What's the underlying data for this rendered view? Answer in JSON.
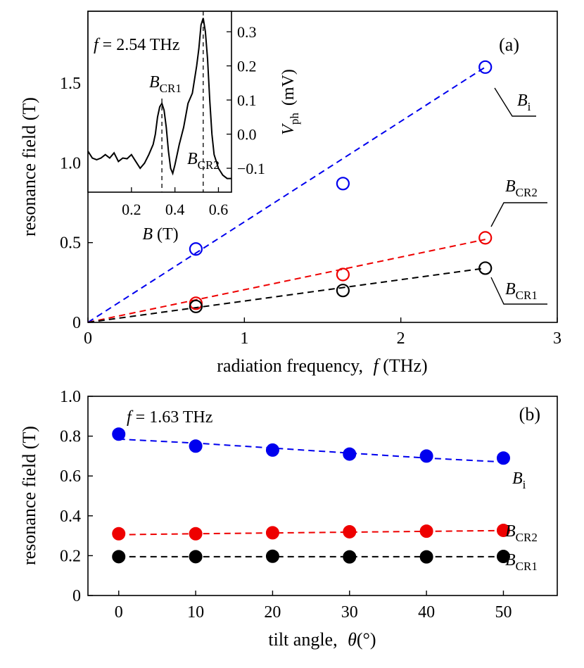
{
  "chart_data": [
    {
      "id": "a",
      "type": "scatter",
      "panel_label": "(a)",
      "xlabel_text": "radiation frequency,",
      "xlabel_var": "f",
      "xlabel_unit": "(THz)",
      "ylabel": "resonance field (T)",
      "xlim": [
        0,
        3
      ],
      "ylim": [
        0,
        1.95
      ],
      "xticks": [
        "0",
        "1",
        "2",
        "3"
      ],
      "yticks": [
        "0",
        "0.5",
        "1.0",
        "1.5"
      ],
      "series": [
        {
          "label_main": "B",
          "label_sub": "i",
          "color": "#0000ee",
          "x": [
            0.69,
            1.63,
            2.54
          ],
          "y": [
            0.46,
            0.87,
            1.6
          ],
          "fit": {
            "x": [
              0,
              2.54
            ],
            "y": [
              0,
              1.6
            ]
          }
        },
        {
          "label_main": "B",
          "label_sub": "CR2",
          "color": "#ee0000",
          "x": [
            0.69,
            1.63,
            2.54
          ],
          "y": [
            0.12,
            0.3,
            0.53
          ],
          "fit": {
            "x": [
              0,
              2.54
            ],
            "y": [
              0,
              0.52
            ]
          }
        },
        {
          "label_main": "B",
          "label_sub": "CR1",
          "color": "#000000",
          "x": [
            0.69,
            1.63,
            2.54
          ],
          "y": [
            0.1,
            0.2,
            0.34
          ],
          "fit": {
            "x": [
              0,
              2.54
            ],
            "y": [
              0,
              0.34
            ]
          }
        }
      ],
      "inset": {
        "type": "line",
        "annotation_var": "f",
        "annotation_text": " = 2.54 THz",
        "xlabel_var": "B",
        "xlabel_unit": " (T)",
        "ylabel_main": "V",
        "ylabel_sub": "ph",
        "ylabel_unit": "(mV)",
        "xlim": [
          0,
          0.66
        ],
        "ylim": [
          -0.17,
          0.36
        ],
        "xticks": [
          "0.2",
          "0.4",
          "0.6"
        ],
        "yticks": [
          "-0.1",
          "0.0",
          "0.1",
          "0.2",
          "0.3"
        ],
        "markers": [
          {
            "x": 0.34,
            "label_main": "B",
            "label_sub": "CR1"
          },
          {
            "x": 0.53,
            "label_main": "B",
            "label_sub": "CR2"
          }
        ],
        "trace": {
          "x": [
            0,
            0.02,
            0.04,
            0.06,
            0.08,
            0.1,
            0.12,
            0.14,
            0.16,
            0.18,
            0.2,
            0.22,
            0.24,
            0.26,
            0.28,
            0.3,
            0.31,
            0.32,
            0.33,
            0.34,
            0.35,
            0.36,
            0.37,
            0.38,
            0.39,
            0.4,
            0.42,
            0.44,
            0.46,
            0.48,
            0.5,
            0.51,
            0.52,
            0.53,
            0.54,
            0.55,
            0.56,
            0.57,
            0.58,
            0.6,
            0.62,
            0.64,
            0.66
          ],
          "y": [
            -0.05,
            -0.07,
            -0.075,
            -0.07,
            -0.06,
            -0.07,
            -0.055,
            -0.08,
            -0.07,
            -0.072,
            -0.06,
            -0.08,
            -0.1,
            -0.085,
            -0.06,
            -0.03,
            0.0,
            0.05,
            0.08,
            0.09,
            0.07,
            0.02,
            -0.05,
            -0.1,
            -0.115,
            -0.09,
            -0.03,
            0.02,
            0.09,
            0.12,
            0.2,
            0.25,
            0.32,
            0.34,
            0.3,
            0.22,
            0.1,
            0.0,
            -0.06,
            -0.1,
            -0.12,
            -0.13,
            -0.13
          ]
        }
      }
    },
    {
      "id": "b",
      "type": "scatter",
      "panel_label": "(b)",
      "xlabel_text": "tilt angle,",
      "xlabel_var": "θ",
      "xlabel_unit": "(°)",
      "ylabel": "resonance field (T)",
      "annotation_var": "f",
      "annotation_text": " = 1.63 THz",
      "xlim": [
        -4,
        57
      ],
      "ylim": [
        0,
        1.0
      ],
      "xticks": [
        "0",
        "10",
        "20",
        "30",
        "40",
        "50"
      ],
      "yticks": [
        "0",
        "0.2",
        "0.4",
        "0.6",
        "0.8",
        "1.0"
      ],
      "series": [
        {
          "label_main": "B",
          "label_sub": "i",
          "color": "#0000ee",
          "x": [
            0,
            10,
            20,
            30,
            40,
            50
          ],
          "y": [
            0.81,
            0.75,
            0.73,
            0.71,
            0.7,
            0.69
          ],
          "fit": {
            "x": [
              0,
              10,
              20,
              30,
              40,
              50
            ],
            "y": [
              0.785,
              0.765,
              0.74,
              0.715,
              0.69,
              0.67
            ]
          }
        },
        {
          "label_main": "B",
          "label_sub": "CR2",
          "color": "#ee0000",
          "x": [
            0,
            10,
            20,
            30,
            40,
            50
          ],
          "y": [
            0.31,
            0.31,
            0.315,
            0.32,
            0.323,
            0.327
          ],
          "fit": {
            "x": [
              0,
              10,
              20,
              30,
              40,
              50
            ],
            "y": [
              0.305,
              0.31,
              0.314,
              0.318,
              0.322,
              0.326
            ]
          }
        },
        {
          "label_main": "B",
          "label_sub": "CR1",
          "color": "#000000",
          "x": [
            0,
            10,
            20,
            30,
            40,
            50
          ],
          "y": [
            0.195,
            0.195,
            0.197,
            0.194,
            0.194,
            0.196
          ],
          "fit": {
            "x": [
              0,
              10,
              20,
              30,
              40,
              50
            ],
            "y": [
              0.195,
              0.195,
              0.195,
              0.195,
              0.195,
              0.195
            ]
          }
        }
      ]
    }
  ]
}
